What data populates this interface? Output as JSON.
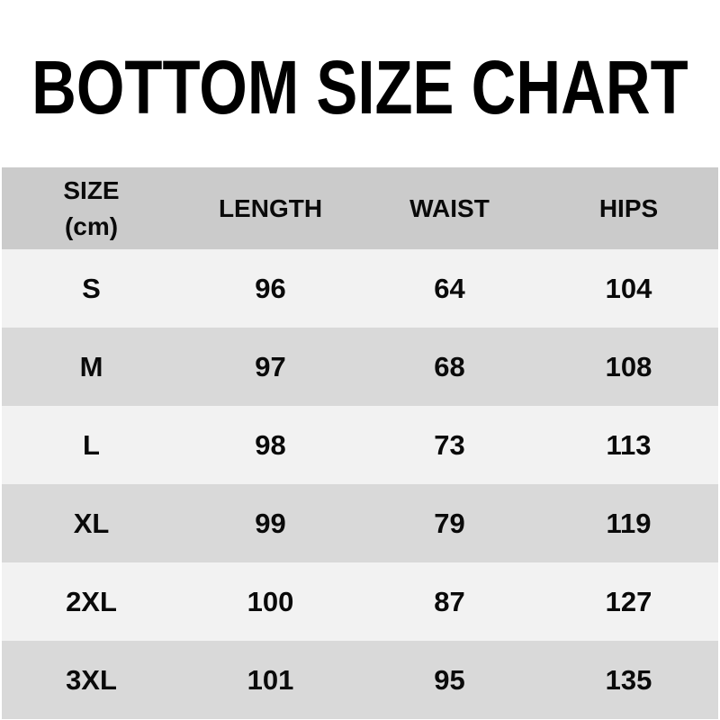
{
  "header": {
    "size": "SIZE",
    "size_unit": "(cm)",
    "length": "LENGTH",
    "waist": "WAIST",
    "hips": "HIPS"
  },
  "chart_data": {
    "type": "table",
    "title": "BOTTOM SIZE CHART",
    "unit": "cm",
    "columns": [
      "SIZE (cm)",
      "LENGTH",
      "WAIST",
      "HIPS"
    ],
    "rows": [
      [
        "S",
        96,
        64,
        104
      ],
      [
        "M",
        97,
        68,
        108
      ],
      [
        "L",
        98,
        73,
        113
      ],
      [
        "XL",
        99,
        79,
        119
      ],
      [
        "2XL",
        100,
        87,
        127
      ],
      [
        "3XL",
        101,
        95,
        135
      ]
    ]
  },
  "colors": {
    "page_bg": "#ffffff",
    "header_bg": "#cbcbcb",
    "row_light_bg": "#f2f2f2",
    "row_dark_bg": "#d9d9d9",
    "text": "#0a0a0a"
  }
}
